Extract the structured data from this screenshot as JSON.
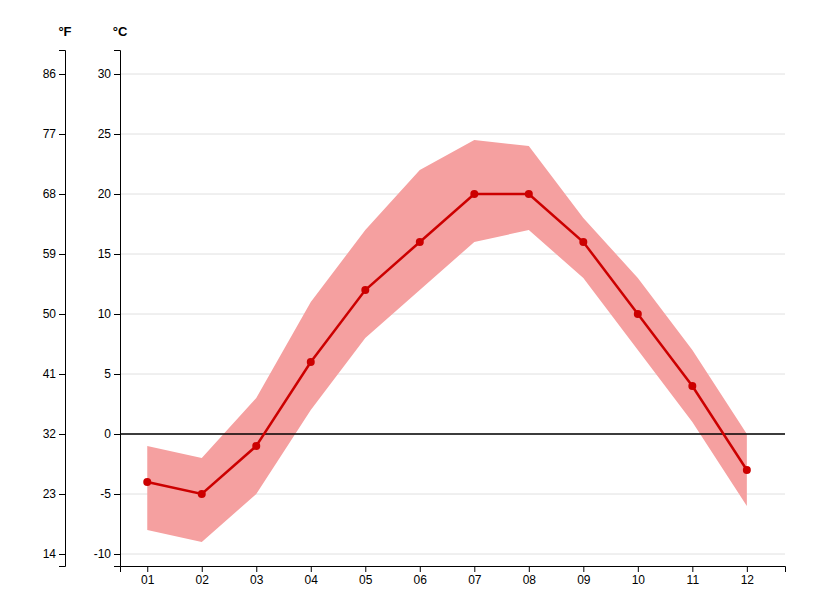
{
  "chart_data": {
    "type": "line",
    "x": [
      1,
      2,
      3,
      4,
      5,
      6,
      7,
      8,
      9,
      10,
      11,
      12
    ],
    "xlim": [
      0.5,
      12.7
    ],
    "xticks": [
      {
        "value": 1,
        "label": "01"
      },
      {
        "value": 2,
        "label": "02"
      },
      {
        "value": 3,
        "label": "03"
      },
      {
        "value": 4,
        "label": "04"
      },
      {
        "value": 5,
        "label": "05"
      },
      {
        "value": 6,
        "label": "06"
      },
      {
        "value": 7,
        "label": "07"
      },
      {
        "value": 8,
        "label": "08"
      },
      {
        "value": 9,
        "label": "09"
      },
      {
        "value": 10,
        "label": "10"
      },
      {
        "value": 11,
        "label": "11"
      },
      {
        "value": 12,
        "label": "12"
      }
    ],
    "ylim": [
      -11,
      32
    ],
    "yticks": [
      -10,
      -5,
      0,
      5,
      10,
      15,
      20,
      25,
      30
    ],
    "y_label": "°C",
    "y2lim": [
      12.2,
      89.6
    ],
    "y2ticks": [
      14,
      23,
      32,
      41,
      50,
      59,
      68,
      77,
      86
    ],
    "y2_label": "°F",
    "grid": true,
    "hlines": [
      {
        "value": 0,
        "color": "#000000"
      }
    ],
    "series": [
      {
        "type": "band",
        "color": "#f5a0a0",
        "low": [
          -8.0,
          -9.0,
          -5.0,
          2.0,
          8.0,
          12.0,
          16.0,
          17.0,
          13.0,
          7.0,
          1.0,
          -6.0
        ],
        "high": [
          -1.0,
          -2.0,
          3.0,
          11.0,
          17.0,
          22.0,
          24.5,
          24.0,
          18.0,
          13.0,
          7.0,
          0.0
        ]
      },
      {
        "type": "line",
        "color": "#cc0000",
        "marker": "circle",
        "values": [
          -4.0,
          -5.0,
          -1.0,
          6.0,
          12.0,
          16.0,
          20.0,
          20.0,
          16.0,
          10.0,
          4.0,
          -3.0
        ]
      }
    ]
  }
}
